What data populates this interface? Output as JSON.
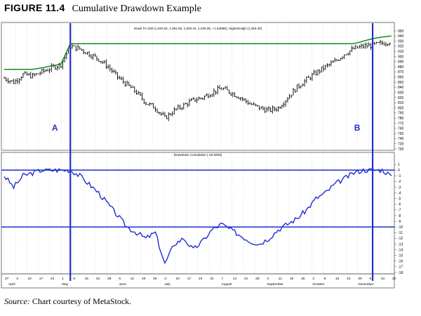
{
  "figure": {
    "number": "FIGURE 11.4",
    "title": "Cumulative Drawdown Example"
  },
  "source": {
    "label": "Source:",
    "text": "Chart courtesy of MetaStock."
  },
  "colors": {
    "price": "#000000",
    "highest_high": "#1a8a1a",
    "drawdown": "#1f2fd0",
    "markers": "#1f2fd0",
    "grid": "#b8b8b8"
  },
  "chart_data": [
    {
      "type": "bar",
      "subtype": "ohlc",
      "legend": "Israel TA-100 (1,040.32, 1,051.92, 1,040.24, 1,049.05, +1.62988), HighestHigh (1,254.40)",
      "ylim": [
        720,
        950
      ],
      "y_ticks": [
        720,
        730,
        740,
        750,
        760,
        770,
        780,
        790,
        800,
        810,
        820,
        830,
        840,
        850,
        860,
        870,
        880,
        890,
        900,
        910,
        920,
        930,
        940,
        950
      ],
      "grid": "vertical dotted",
      "closes_weekly": [
        858,
        850,
        865,
        862,
        870,
        878,
        885,
        920,
        915,
        905,
        895,
        880,
        860,
        845,
        830,
        810,
        800,
        780,
        795,
        805,
        815,
        820,
        830,
        838,
        830,
        820,
        808,
        800,
        795,
        800,
        820,
        840,
        855,
        868,
        880,
        890,
        905,
        915,
        920,
        922,
        926,
        930
      ],
      "highest_high_weekly": [
        875,
        875,
        875,
        875,
        878,
        882,
        885,
        925,
        925,
        925,
        925,
        925,
        925,
        925,
        925,
        925,
        925,
        925,
        925,
        925,
        925,
        925,
        925,
        925,
        925,
        925,
        925,
        925,
        925,
        925,
        925,
        925,
        925,
        925,
        925,
        925,
        925,
        925,
        930,
        935,
        938,
        940
      ]
    },
    {
      "type": "line",
      "legend": "Drawdown Cumulative (-15.9353)",
      "ylim": [
        -18,
        2
      ],
      "y_ticks": [
        1,
        0,
        -1,
        -2,
        -3,
        -4,
        -5,
        -6,
        -7,
        -8,
        -9,
        -10,
        -11,
        -12,
        -13,
        -14,
        -15,
        -16,
        -17,
        -18
      ],
      "hlines": [
        0,
        -10
      ],
      "values_weekly": [
        -1.0,
        -3.0,
        -1.0,
        -0.5,
        0.0,
        0.0,
        0.0,
        0.0,
        -1.0,
        -2.5,
        -4.0,
        -6.0,
        -8.0,
        -10.0,
        -11.0,
        -12.0,
        -11.0,
        -16.5,
        -13.0,
        -12.0,
        -14.0,
        -12.5,
        -10.5,
        -9.5,
        -10.5,
        -11.5,
        -12.5,
        -13.0,
        -12.0,
        -10.5,
        -9.5,
        -8.5,
        -7.0,
        -5.0,
        -4.0,
        -2.5,
        -1.5,
        -0.5,
        0.0,
        0.0,
        0.0,
        -1.0
      ]
    }
  ],
  "x_axis": {
    "day_ticks": [
      "27",
      "3",
      "10",
      "17",
      "24",
      "1",
      "8",
      "15",
      "22",
      "29",
      "5",
      "12",
      "19",
      "26",
      "3",
      "10",
      "17",
      "24",
      "31",
      "7",
      "14",
      "21",
      "28",
      "4",
      "11",
      "18",
      "25",
      "2",
      "9",
      "16",
      "23",
      "30",
      "6",
      "13",
      "20"
    ],
    "months": [
      "April",
      "May",
      "June",
      "July",
      "August",
      "September",
      "October",
      "November"
    ]
  },
  "markers": [
    {
      "label": "A",
      "week": 7
    },
    {
      "label": "B",
      "week": 39
    }
  ]
}
